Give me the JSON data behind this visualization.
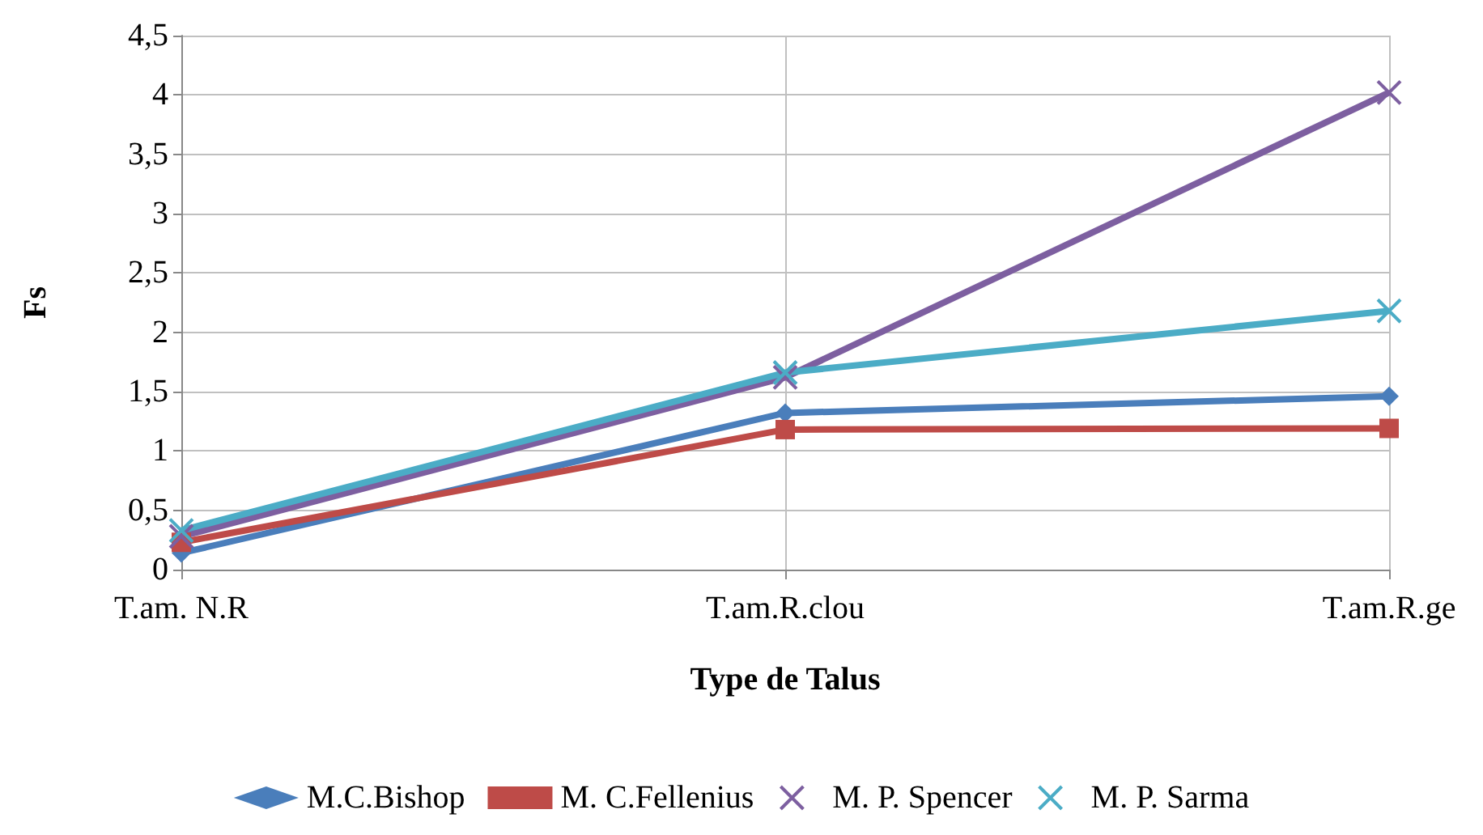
{
  "chart_data": {
    "type": "line",
    "xlabel": "Type de Talus",
    "ylabel": "Fs",
    "categories": [
      "T.am. N.R",
      "T.am.R.clou",
      "T.am.R.ge"
    ],
    "series": [
      {
        "name": "M.C.Bishop",
        "color": "#4a7ebb",
        "marker": "diamond",
        "values": [
          0.14,
          1.32,
          1.46
        ]
      },
      {
        "name": "M. C.Fellenius",
        "color": "#be4b48",
        "marker": "square",
        "values": [
          0.23,
          1.18,
          1.19
        ]
      },
      {
        "name": "M. P. Spencer",
        "color": "#7d5fa0",
        "marker": "cross",
        "values": [
          0.28,
          1.62,
          4.02
        ]
      },
      {
        "name": "M. P. Sarma",
        "color": "#4bacc6",
        "marker": "cross",
        "values": [
          0.33,
          1.66,
          2.18
        ]
      }
    ],
    "ylim": [
      0,
      4.5
    ],
    "yticks": [
      0,
      {
        "value": 0.5,
        "label": "0,5"
      },
      1,
      {
        "value": 1.5,
        "label": "1,5"
      },
      2,
      {
        "value": 2.5,
        "label": "2,5"
      },
      3,
      {
        "value": 3.5,
        "label": "3,5"
      },
      4,
      {
        "value": 4.5,
        "label": "4,5"
      }
    ],
    "grid": true,
    "legend": "bottom"
  }
}
